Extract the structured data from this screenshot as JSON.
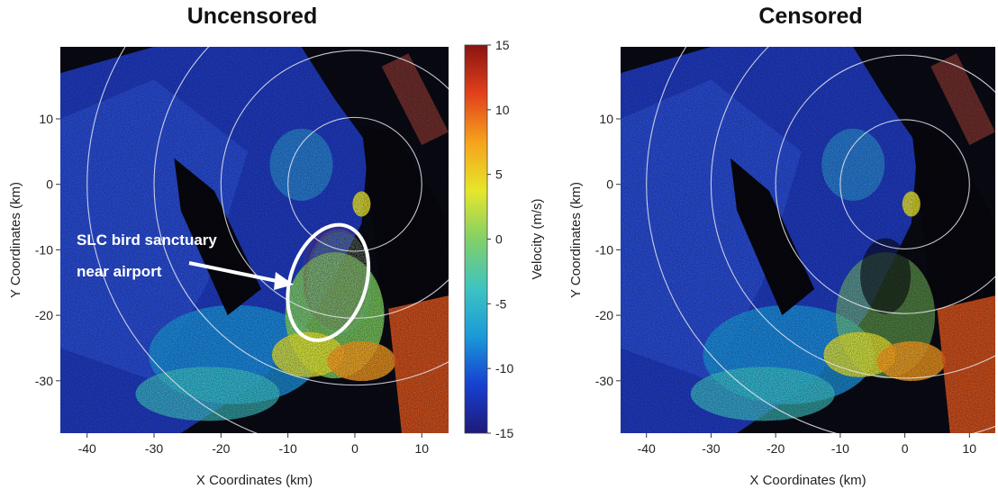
{
  "chart_data": [
    {
      "type": "heatmap",
      "title": "Uncensored",
      "xlabel": "X Coordinates (km)",
      "ylabel": "Y Coordinates (km)",
      "xlim": [
        -44,
        14
      ],
      "ylim": [
        -38,
        21
      ],
      "xticks": [
        "-40",
        "-30",
        "-20",
        "-10",
        "0",
        "10"
      ],
      "xtick_values": [
        -40,
        -30,
        -20,
        -10,
        0,
        10
      ],
      "yticks": [
        "10",
        "0",
        "-10",
        "-20",
        "-30"
      ],
      "ytick_values": [
        10,
        0,
        -10,
        -20,
        -30
      ],
      "range_rings_km": [
        10,
        20,
        30,
        40
      ],
      "annotation": {
        "lines": [
          "SLC  bird  sanctuary",
          "near airport"
        ],
        "target_center": [
          -4,
          -15
        ]
      },
      "colorbar": {
        "label": "Velocity (m/s)",
        "ticks": [
          "15",
          "10",
          "5",
          "0",
          "-5",
          "-10",
          "-15"
        ],
        "tick_values": [
          15,
          10,
          5,
          0,
          -5,
          -10,
          -15
        ],
        "range": [
          -15,
          15
        ],
        "colormap": [
          "#1e1a7a",
          "#1740d0",
          "#1a9ad8",
          "#3ec4c0",
          "#82d068",
          "#e6e62a",
          "#f5a31c",
          "#e2401c",
          "#8a1410"
        ]
      }
    },
    {
      "type": "heatmap",
      "title": "Censored",
      "xlabel": "X Coordinates (km)",
      "ylabel": "Y Coordinates (km)",
      "xlim": [
        -44,
        14
      ],
      "ylim": [
        -38,
        21
      ],
      "xticks": [
        "-40",
        "-30",
        "-20",
        "-10",
        "0",
        "10"
      ],
      "xtick_values": [
        -40,
        -30,
        -20,
        -10,
        0,
        10
      ],
      "yticks": [
        "10",
        "0",
        "-10",
        "-20",
        "-30"
      ],
      "ytick_values": [
        10,
        0,
        -10,
        -20,
        -30
      ],
      "range_rings_km": [
        10,
        20,
        30,
        40
      ]
    }
  ]
}
